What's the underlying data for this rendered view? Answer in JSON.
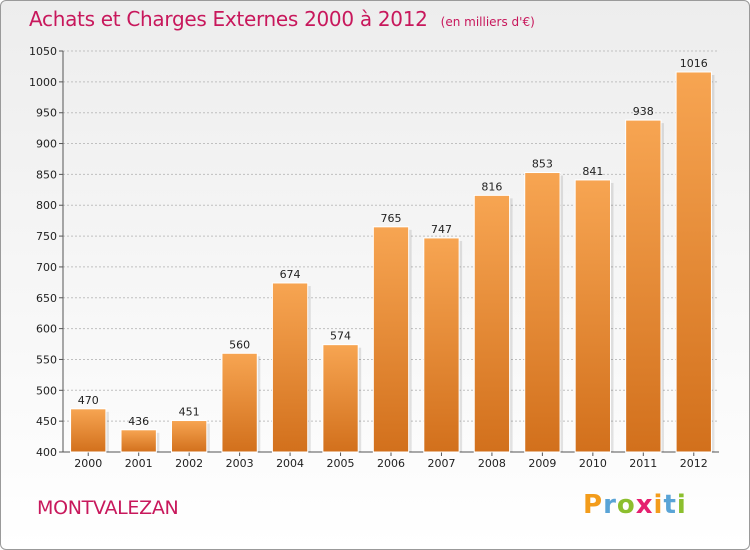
{
  "header": {
    "title": "Achats et Charges Externes 2000 à 2012",
    "unit": "(en milliers d'€)"
  },
  "footer": {
    "town": "MONTVALEZAN",
    "logo_text": "Proxiti"
  },
  "colors": {
    "title": "#c8185c",
    "bar_top": "#f7a552",
    "bar_bottom": "#d2701c",
    "grid": "#c0c0c0",
    "logo_letters": [
      "#f39c1b",
      "#5aa4d6",
      "#8cbf2e",
      "#e5206f",
      "#f39c1b",
      "#5aa4d6",
      "#8cbf2e"
    ]
  },
  "chart_data": {
    "type": "bar",
    "title": "Achats et Charges Externes 2000 à 2012",
    "subtitle": "(en milliers d'€)",
    "xlabel": "",
    "ylabel": "",
    "categories": [
      "2000",
      "2001",
      "2002",
      "2003",
      "2004",
      "2005",
      "2006",
      "2007",
      "2008",
      "2009",
      "2010",
      "2011",
      "2012"
    ],
    "values": [
      470,
      436,
      451,
      560,
      674,
      574,
      765,
      747,
      816,
      853,
      841,
      938,
      1016
    ],
    "ylim": [
      400,
      1050
    ],
    "yticks": [
      400,
      450,
      500,
      550,
      600,
      650,
      700,
      750,
      800,
      850,
      900,
      950,
      1000,
      1050
    ],
    "grid": true,
    "legend": "none"
  }
}
